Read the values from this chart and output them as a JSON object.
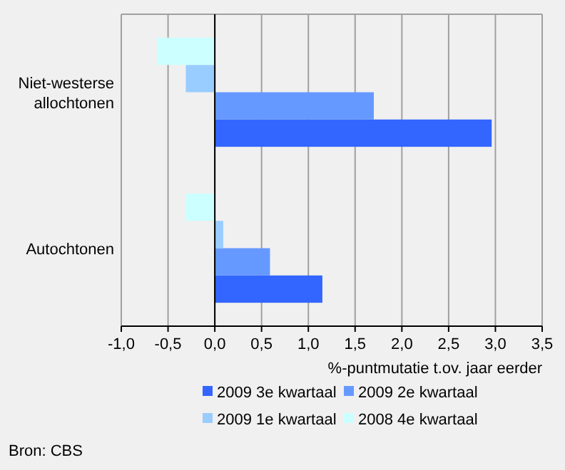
{
  "chart_data": {
    "type": "bar",
    "orientation": "horizontal",
    "categories": [
      "Niet-westerse allochtonen",
      "Autochtonen"
    ],
    "series": [
      {
        "name": "2009 3e kwartaal",
        "color": "#3366ff",
        "values": [
          2.96,
          1.15
        ]
      },
      {
        "name": "2009 2e kwartaal",
        "color": "#6699ff",
        "values": [
          1.7,
          0.59
        ]
      },
      {
        "name": "2009 1e kwartaal",
        "color": "#99ccff",
        "values": [
          -0.31,
          0.09
        ]
      },
      {
        "name": "2008 4e kwartaal",
        "color": "#ccffff",
        "values": [
          -0.62,
          -0.31
        ]
      }
    ],
    "xlim": [
      -1,
      3.5
    ],
    "xticks": [
      {
        "value": -1,
        "label": "-1,0"
      },
      {
        "value": -0.5,
        "label": "-0,5"
      },
      {
        "value": 0,
        "label": "0,0"
      },
      {
        "value": 0.5,
        "label": "0,5"
      },
      {
        "value": 1,
        "label": "1,0"
      },
      {
        "value": 1.5,
        "label": "1,5"
      },
      {
        "value": 2,
        "label": "2,0"
      },
      {
        "value": 2.5,
        "label": "2,5"
      },
      {
        "value": 3,
        "label": "3,0"
      },
      {
        "value": 3.5,
        "label": "3,5"
      }
    ],
    "xlabel": "%-puntmutatie t.ov. jaar eerder",
    "grid": "x",
    "legend": "bottom",
    "annotations": [
      "Bron: CBS"
    ]
  }
}
